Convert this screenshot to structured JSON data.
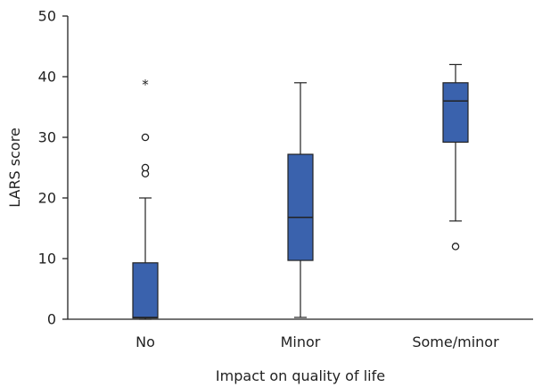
{
  "chart_data": {
    "type": "box",
    "title": "",
    "xlabel": "Impact on quality of life",
    "ylabel": "LARS score",
    "ylim": [
      0,
      50
    ],
    "yticks": [
      0,
      10,
      20,
      30,
      40,
      50
    ],
    "categories": [
      "No",
      "Minor",
      "Some/minor"
    ],
    "boxes": [
      {
        "category": "No",
        "min": 0,
        "q1": 0.2,
        "median": 0.3,
        "q3": 9.3,
        "max": 20,
        "outliers": [
          24,
          25,
          30
        ],
        "extremes": [
          39
        ]
      },
      {
        "category": "Minor",
        "min": 0.3,
        "q1": 9.7,
        "median": 16.8,
        "q3": 27.2,
        "max": 39,
        "outliers": [],
        "extremes": []
      },
      {
        "category": "Some/minor",
        "min": 16.2,
        "q1": 29.2,
        "median": 36,
        "q3": 39,
        "max": 42,
        "outliers": [
          12
        ],
        "extremes": []
      }
    ],
    "box_color": "#3a62ad",
    "extreme_marker": "*",
    "grid": false,
    "legend": "none"
  }
}
